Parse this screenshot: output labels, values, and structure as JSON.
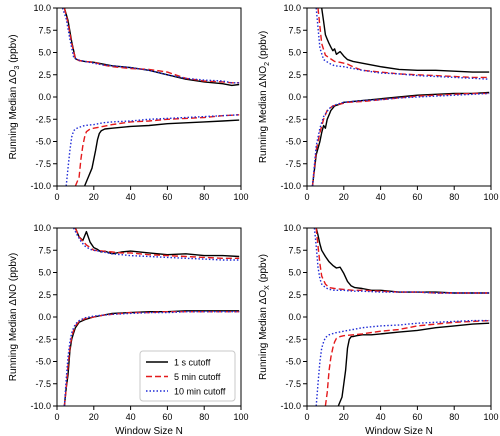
{
  "styles": [
    {
      "color": "#000000",
      "dash": ""
    },
    {
      "color": "#e41a1c",
      "dash": "6,3"
    },
    {
      "color": "#1f2bd6",
      "dash": "1.5,2"
    }
  ],
  "chart_data": [
    {
      "type": "line",
      "ylabel": "Running Median ΔO",
      "ylabel_sub": "3",
      "ylabel_unit": "(ppbv)",
      "xlabel": "",
      "xlim": [
        0,
        100
      ],
      "ylim": [
        -10,
        10
      ],
      "xticks": [
        "0",
        "20",
        "40",
        "60",
        "80",
        "100"
      ],
      "yticks": [
        "-10.0",
        "-7.5",
        "-5.0",
        "-2.5",
        "0.0",
        "2.5",
        "5.0",
        "7.5",
        "10.0"
      ],
      "series": [
        {
          "name": "1 s cutoff",
          "x": [
            4,
            6,
            8,
            10,
            12,
            15,
            20,
            25,
            30,
            40,
            50,
            60,
            70,
            80,
            90,
            95,
            99
          ],
          "y": [
            10.0,
            8.6,
            6.2,
            4.3,
            4.1,
            4.0,
            3.9,
            3.7,
            3.5,
            3.3,
            3.0,
            2.5,
            2.0,
            1.7,
            1.5,
            1.3,
            1.4
          ]
        },
        {
          "name": "5 min cutoff",
          "x": [
            4,
            6,
            8,
            10,
            12,
            15,
            20,
            25,
            30,
            40,
            50,
            60,
            70,
            80,
            90,
            95,
            99
          ],
          "y": [
            10.0,
            8.3,
            6.0,
            4.3,
            4.1,
            4.0,
            3.9,
            3.6,
            3.4,
            3.2,
            3.1,
            2.8,
            2.1,
            1.8,
            1.7,
            1.6,
            1.6
          ]
        },
        {
          "name": "10 min cutoff",
          "x": [
            3,
            5,
            7,
            9,
            11,
            15,
            20,
            25,
            30,
            40,
            50,
            60,
            70,
            80,
            90,
            95,
            99
          ],
          "y": [
            10.0,
            8.8,
            6.5,
            4.5,
            4.2,
            4.0,
            3.8,
            3.6,
            3.5,
            3.3,
            3.0,
            2.5,
            2.1,
            1.9,
            1.8,
            1.6,
            1.6
          ]
        },
        {
          "name": "1 s cutoff",
          "x": [
            15,
            17,
            19,
            21,
            22,
            23,
            24,
            26,
            30,
            35,
            40,
            50,
            60,
            70,
            80,
            90,
            99
          ],
          "y": [
            -10.0,
            -9.0,
            -8.0,
            -6.0,
            -4.8,
            -4.1,
            -3.8,
            -3.6,
            -3.5,
            -3.4,
            -3.3,
            -3.2,
            -3.0,
            -2.9,
            -2.8,
            -2.7,
            -2.6
          ]
        },
        {
          "name": "5 min cutoff",
          "x": [
            10,
            12,
            13,
            14,
            15,
            16,
            18,
            20,
            25,
            30,
            40,
            50,
            60,
            70,
            80,
            90,
            99
          ],
          "y": [
            -10.0,
            -9.0,
            -7.0,
            -5.5,
            -4.5,
            -3.9,
            -3.6,
            -3.5,
            -3.3,
            -3.1,
            -2.8,
            -2.7,
            -2.5,
            -2.4,
            -2.3,
            -2.1,
            -2.0
          ]
        },
        {
          "name": "10 min cutoff",
          "x": [
            5,
            6,
            7,
            8,
            9,
            10,
            12,
            15,
            20,
            25,
            30,
            40,
            50,
            60,
            70,
            80,
            99
          ],
          "y": [
            -10.0,
            -8.0,
            -6.0,
            -4.5,
            -3.8,
            -3.6,
            -3.4,
            -3.2,
            -3.1,
            -2.9,
            -2.8,
            -2.7,
            -2.5,
            -2.4,
            -2.3,
            -2.2,
            -2.0
          ]
        }
      ]
    },
    {
      "type": "line",
      "ylabel": "Running Median ΔNO",
      "ylabel_sub": "2",
      "ylabel_unit": "(ppbv)",
      "xlabel": "",
      "xlim": [
        0,
        100
      ],
      "ylim": [
        -10,
        10
      ],
      "xticks": [
        "0",
        "20",
        "40",
        "60",
        "80",
        "100"
      ],
      "yticks": [
        "-10.0",
        "-7.5",
        "-5.0",
        "-2.5",
        "0.0",
        "2.5",
        "5.0",
        "7.5",
        "10.0"
      ],
      "series": [
        {
          "name": "1 s cutoff",
          "x": [
            8,
            9,
            10,
            11,
            12,
            13,
            14,
            15,
            16,
            18,
            20,
            22,
            25,
            30,
            40,
            50,
            60,
            70,
            80,
            90,
            99
          ],
          "y": [
            10.0,
            8.5,
            7.0,
            6.5,
            6.0,
            5.6,
            5.2,
            5.4,
            4.8,
            5.1,
            4.6,
            4.2,
            4.0,
            3.8,
            3.4,
            3.1,
            3.0,
            3.0,
            2.9,
            2.8,
            2.8
          ]
        },
        {
          "name": "5 min cutoff",
          "x": [
            6,
            8,
            10,
            12,
            15,
            18,
            22,
            26,
            30,
            40,
            50,
            60,
            70,
            80,
            90,
            99
          ],
          "y": [
            10.0,
            6.0,
            4.7,
            4.4,
            4.0,
            3.9,
            3.7,
            3.3,
            3.0,
            2.8,
            2.6,
            2.5,
            2.4,
            2.3,
            2.2,
            2.2
          ]
        },
        {
          "name": "10 min cutoff",
          "x": [
            5,
            7,
            9,
            12,
            15,
            20,
            25,
            30,
            40,
            50,
            60,
            70,
            80,
            90,
            99
          ],
          "y": [
            10.0,
            5.5,
            4.2,
            3.8,
            3.5,
            3.4,
            3.2,
            3.0,
            2.7,
            2.6,
            2.4,
            2.3,
            2.2,
            2.1,
            2.0
          ]
        },
        {
          "name": "1 s cutoff",
          "x": [
            3,
            5,
            7,
            8,
            9,
            10,
            11,
            12,
            13,
            15,
            18,
            20,
            25,
            30,
            40,
            50,
            60,
            70,
            80,
            90,
            99
          ],
          "y": [
            -10.0,
            -6.5,
            -5.0,
            -4.0,
            -3.2,
            -3.5,
            -2.5,
            -2.0,
            -1.5,
            -1.0,
            -0.8,
            -0.6,
            -0.5,
            -0.4,
            -0.2,
            0.0,
            0.2,
            0.3,
            0.4,
            0.4,
            0.5
          ]
        },
        {
          "name": "5 min cutoff",
          "x": [
            3,
            5,
            7,
            9,
            11,
            14,
            18,
            22,
            30,
            40,
            50,
            60,
            70,
            80,
            90,
            99
          ],
          "y": [
            -10.0,
            -6.0,
            -4.0,
            -2.5,
            -1.5,
            -1.0,
            -0.8,
            -0.6,
            -0.5,
            -0.3,
            -0.1,
            0.1,
            0.2,
            0.3,
            0.4,
            0.4
          ]
        },
        {
          "name": "10 min cutoff",
          "x": [
            3,
            5,
            7,
            9,
            12,
            15,
            20,
            30,
            40,
            50,
            60,
            70,
            80,
            90,
            99
          ],
          "y": [
            -10.0,
            -5.5,
            -3.5,
            -2.2,
            -1.3,
            -0.9,
            -0.6,
            -0.4,
            -0.3,
            -0.1,
            0.0,
            0.1,
            0.2,
            0.3,
            0.4
          ]
        }
      ]
    },
    {
      "type": "line",
      "ylabel": "Running Median ΔNO (ppbv)",
      "ylabel_sub": "",
      "ylabel_unit": "",
      "xlabel": "Window Size N",
      "xlim": [
        0,
        100
      ],
      "ylim": [
        -10,
        10
      ],
      "xticks": [
        "0",
        "20",
        "40",
        "60",
        "80",
        "100"
      ],
      "yticks": [
        "-10.0",
        "-7.5",
        "-5.0",
        "-2.5",
        "0.0",
        "2.5",
        "5.0",
        "7.5",
        "10.0"
      ],
      "series": [
        {
          "name": "1 s cutoff",
          "x": [
            10,
            12,
            14,
            16,
            18,
            20,
            22,
            24,
            26,
            30,
            35,
            40,
            50,
            60,
            70,
            80,
            90,
            99
          ],
          "y": [
            10.0,
            9.0,
            8.6,
            9.6,
            8.4,
            7.8,
            7.6,
            7.3,
            7.4,
            7.1,
            7.3,
            7.4,
            7.2,
            7.0,
            7.1,
            6.9,
            6.9,
            6.8
          ]
        },
        {
          "name": "5 min cutoff",
          "x": [
            10,
            12,
            14,
            16,
            18,
            20,
            25,
            30,
            35,
            40,
            50,
            60,
            70,
            80,
            90,
            99
          ],
          "y": [
            10.0,
            9.0,
            8.5,
            8.1,
            7.8,
            7.5,
            7.4,
            7.3,
            7.2,
            7.2,
            7.0,
            6.9,
            6.8,
            6.7,
            6.6,
            6.6
          ]
        },
        {
          "name": "10 min cutoff",
          "x": [
            9,
            11,
            13,
            15,
            18,
            20,
            25,
            30,
            40,
            50,
            60,
            70,
            80,
            90,
            99
          ],
          "y": [
            10.0,
            9.2,
            8.5,
            8.0,
            7.6,
            7.5,
            7.3,
            7.1,
            6.9,
            6.8,
            6.7,
            6.6,
            6.5,
            6.4,
            6.4
          ]
        },
        {
          "name": "1 s cutoff",
          "x": [
            4,
            5,
            6,
            7,
            8,
            9,
            10,
            12,
            15,
            18,
            20,
            25,
            30,
            40,
            50,
            60,
            70,
            80,
            90,
            99
          ],
          "y": [
            -10.0,
            -8.0,
            -6.5,
            -3.8,
            -2.5,
            -1.8,
            -1.2,
            -0.6,
            -0.3,
            -0.1,
            0.0,
            0.2,
            0.4,
            0.5,
            0.6,
            0.6,
            0.7,
            0.7,
            0.7,
            0.7
          ]
        },
        {
          "name": "5 min cutoff",
          "x": [
            4,
            5,
            6,
            7,
            8,
            9,
            10,
            12,
            15,
            20,
            25,
            30,
            40,
            50,
            60,
            70,
            80,
            90,
            99
          ],
          "y": [
            -10.0,
            -8.0,
            -5.5,
            -3.5,
            -2.2,
            -1.5,
            -1.0,
            -0.5,
            -0.2,
            0.0,
            0.2,
            0.3,
            0.5,
            0.5,
            0.6,
            0.6,
            0.6,
            0.6,
            0.6
          ]
        },
        {
          "name": "10 min cutoff",
          "x": [
            4,
            5,
            6,
            7,
            8,
            9,
            10,
            12,
            15,
            20,
            25,
            30,
            40,
            50,
            60,
            70,
            80,
            90,
            99
          ],
          "y": [
            -10.0,
            -7.0,
            -4.5,
            -2.8,
            -1.8,
            -1.2,
            -0.8,
            -0.4,
            -0.1,
            0.1,
            0.2,
            0.3,
            0.4,
            0.5,
            0.5,
            0.6,
            0.6,
            0.6,
            0.6
          ]
        }
      ]
    },
    {
      "type": "line",
      "ylabel": "Running Median ΔO",
      "ylabel_sub": "X",
      "ylabel_unit": "(ppbv)",
      "xlabel": "Window Size N",
      "xlim": [
        0,
        100
      ],
      "ylim": [
        -10,
        10
      ],
      "xticks": [
        "0",
        "20",
        "40",
        "60",
        "80",
        "100"
      ],
      "yticks": [
        "-10.0",
        "-7.5",
        "-5.0",
        "-2.5",
        "0.0",
        "2.5",
        "5.0",
        "7.5",
        "10.0"
      ],
      "series": [
        {
          "name": "1 s cutoff",
          "x": [
            5,
            6,
            7,
            8,
            10,
            12,
            14,
            16,
            18,
            20,
            22,
            24,
            26,
            30,
            35,
            40,
            50,
            60,
            70,
            80,
            90,
            99
          ],
          "y": [
            10.0,
            9.2,
            8.2,
            7.5,
            6.8,
            6.2,
            5.8,
            5.5,
            5.6,
            4.9,
            4.0,
            3.5,
            3.3,
            3.2,
            3.0,
            3.0,
            2.8,
            2.8,
            2.8,
            2.7,
            2.7,
            2.7
          ]
        },
        {
          "name": "5 min cutoff",
          "x": [
            5,
            6,
            7,
            8,
            10,
            12,
            15,
            20,
            25,
            30,
            40,
            50,
            60,
            70,
            80,
            90,
            99
          ],
          "y": [
            10.0,
            8.0,
            6.0,
            4.6,
            3.7,
            3.3,
            3.2,
            3.1,
            3.0,
            3.0,
            2.9,
            2.8,
            2.8,
            2.7,
            2.7,
            2.7,
            2.7
          ]
        },
        {
          "name": "10 min cutoff",
          "x": [
            4,
            5,
            6,
            7,
            8,
            10,
            12,
            15,
            20,
            25,
            30,
            40,
            50,
            60,
            70,
            80,
            90,
            99
          ],
          "y": [
            10.0,
            8.0,
            5.6,
            4.3,
            3.7,
            3.3,
            3.1,
            3.0,
            3.0,
            2.9,
            2.9,
            2.8,
            2.8,
            2.8,
            2.7,
            2.7,
            2.7,
            2.7
          ]
        },
        {
          "name": "1 s cutoff",
          "x": [
            17,
            18,
            19,
            20,
            21,
            22,
            23,
            24,
            25,
            27,
            30,
            35,
            40,
            50,
            60,
            70,
            80,
            90,
            99
          ],
          "y": [
            -10.0,
            -9.5,
            -9.0,
            -7.5,
            -6.0,
            -3.5,
            -2.5,
            -2.2,
            -2.2,
            -2.1,
            -2.0,
            -2.0,
            -1.9,
            -1.7,
            -1.5,
            -1.2,
            -1.0,
            -0.8,
            -0.7
          ]
        },
        {
          "name": "5 min cutoff",
          "x": [
            10,
            11,
            12,
            13,
            14,
            15,
            16,
            18,
            20,
            25,
            30,
            40,
            50,
            60,
            70,
            80,
            90,
            99
          ],
          "y": [
            -10.0,
            -8.5,
            -6.0,
            -4.5,
            -3.5,
            -2.8,
            -2.4,
            -2.2,
            -2.1,
            -2.0,
            -1.9,
            -1.6,
            -1.4,
            -1.0,
            -0.8,
            -0.6,
            -0.5,
            -0.4
          ]
        },
        {
          "name": "10 min cutoff",
          "x": [
            5,
            6,
            7,
            8,
            9,
            10,
            12,
            15,
            20,
            25,
            30,
            40,
            50,
            60,
            70,
            80,
            90,
            99
          ],
          "y": [
            -10.0,
            -7.5,
            -5.0,
            -3.5,
            -2.8,
            -2.3,
            -2.0,
            -1.8,
            -1.6,
            -1.4,
            -1.2,
            -1.0,
            -0.9,
            -0.7,
            -0.6,
            -0.5,
            -0.4,
            -0.4
          ]
        }
      ]
    }
  ],
  "legend": {
    "panel": 2,
    "placement": "lower-right",
    "entries": [
      "1 s cutoff",
      "5 min cutoff",
      "10 min cutoff"
    ]
  }
}
